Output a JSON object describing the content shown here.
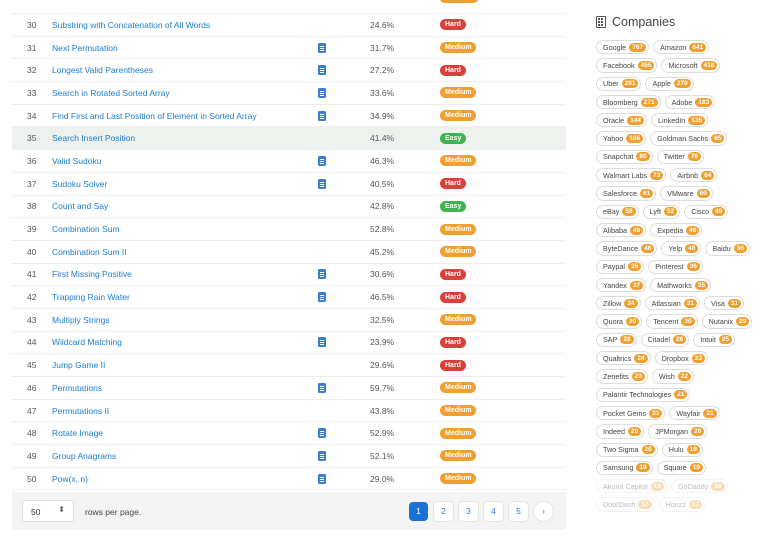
{
  "table": {
    "rows": [
      {
        "id": "30",
        "title": "Substring with Concatenation of All Words",
        "solution": false,
        "acceptance": "24.6%",
        "difficulty": "Hard"
      },
      {
        "id": "31",
        "title": "Next Permutation",
        "solution": true,
        "acceptance": "31.7%",
        "difficulty": "Medium"
      },
      {
        "id": "32",
        "title": "Longest Valid Parentheses",
        "solution": true,
        "acceptance": "27.2%",
        "difficulty": "Hard"
      },
      {
        "id": "33",
        "title": "Search in Rotated Sorted Array",
        "solution": true,
        "acceptance": "33.6%",
        "difficulty": "Medium"
      },
      {
        "id": "34",
        "title": "Find First and Last Position of Element in Sorted Array",
        "solution": true,
        "acceptance": "34.9%",
        "difficulty": "Medium"
      },
      {
        "id": "35",
        "title": "Search Insert Position",
        "solution": false,
        "acceptance": "41.4%",
        "difficulty": "Easy"
      },
      {
        "id": "36",
        "title": "Valid Sudoku",
        "solution": true,
        "acceptance": "46.3%",
        "difficulty": "Medium"
      },
      {
        "id": "37",
        "title": "Sudoku Solver",
        "solution": true,
        "acceptance": "40.5%",
        "difficulty": "Hard"
      },
      {
        "id": "38",
        "title": "Count and Say",
        "solution": false,
        "acceptance": "42.8%",
        "difficulty": "Easy"
      },
      {
        "id": "39",
        "title": "Combination Sum",
        "solution": false,
        "acceptance": "52.8%",
        "difficulty": "Medium"
      },
      {
        "id": "40",
        "title": "Combination Sum II",
        "solution": false,
        "acceptance": "45.2%",
        "difficulty": "Medium"
      },
      {
        "id": "41",
        "title": "First Missing Positive",
        "solution": true,
        "acceptance": "30.6%",
        "difficulty": "Hard"
      },
      {
        "id": "42",
        "title": "Trapping Rain Water",
        "solution": true,
        "acceptance": "46.5%",
        "difficulty": "Hard"
      },
      {
        "id": "43",
        "title": "Multiply Strings",
        "solution": false,
        "acceptance": "32.5%",
        "difficulty": "Medium"
      },
      {
        "id": "44",
        "title": "Wildcard Matching",
        "solution": true,
        "acceptance": "23.9%",
        "difficulty": "Hard"
      },
      {
        "id": "45",
        "title": "Jump Game II",
        "solution": false,
        "acceptance": "29.6%",
        "difficulty": "Hard"
      },
      {
        "id": "46",
        "title": "Permutations",
        "solution": true,
        "acceptance": "59.7%",
        "difficulty": "Medium"
      },
      {
        "id": "47",
        "title": "Permutations II",
        "solution": false,
        "acceptance": "43.8%",
        "difficulty": "Medium"
      },
      {
        "id": "48",
        "title": "Rotate Image",
        "solution": true,
        "acceptance": "52.9%",
        "difficulty": "Medium"
      },
      {
        "id": "49",
        "title": "Group Anagrams",
        "solution": true,
        "acceptance": "52.1%",
        "difficulty": "Medium"
      },
      {
        "id": "50",
        "title": "Pow(x, n)",
        "solution": true,
        "acceptance": "29.0%",
        "difficulty": "Medium"
      }
    ],
    "highlighted_id": "35"
  },
  "footer": {
    "per_page_value": "50",
    "per_page_arrow": "⬍",
    "per_page_label": "rows per page.",
    "pages": [
      "1",
      "2",
      "3",
      "4",
      "5"
    ],
    "active_page": "1",
    "next_label": "›"
  },
  "companies": {
    "title": "Companies",
    "icon": "building-icon",
    "tags": [
      {
        "name": "Google",
        "count": "767"
      },
      {
        "name": "Amazon",
        "count": "641"
      },
      {
        "name": "Facebook",
        "count": "455"
      },
      {
        "name": "Microsoft",
        "count": "418"
      },
      {
        "name": "Uber",
        "count": "281"
      },
      {
        "name": "Apple",
        "count": "270"
      },
      {
        "name": "Bloomberg",
        "count": "271"
      },
      {
        "name": "Adobe",
        "count": "183"
      },
      {
        "name": "Oracle",
        "count": "144"
      },
      {
        "name": "LinkedIn",
        "count": "135"
      },
      {
        "name": "Yahoo",
        "count": "106"
      },
      {
        "name": "Goldman Sachs",
        "count": "85"
      },
      {
        "name": "Snapchat",
        "count": "80"
      },
      {
        "name": "Twitter",
        "count": "76"
      },
      {
        "name": "Walmart Labs",
        "count": "73"
      },
      {
        "name": "Airbnb",
        "count": "64"
      },
      {
        "name": "Salesforce",
        "count": "61"
      },
      {
        "name": "VMware",
        "count": "60"
      },
      {
        "name": "eBay",
        "count": "58"
      },
      {
        "name": "Lyft",
        "count": "52"
      },
      {
        "name": "Cisco",
        "count": "49"
      },
      {
        "name": "Alibaba",
        "count": "46"
      },
      {
        "name": "Expedia",
        "count": "46"
      },
      {
        "name": "ByteDance",
        "count": "46"
      },
      {
        "name": "Yelp",
        "count": "40"
      },
      {
        "name": "Baidu",
        "count": "36"
      },
      {
        "name": "Paypal",
        "count": "35"
      },
      {
        "name": "Pinterest",
        "count": "36"
      },
      {
        "name": "Yandex",
        "count": "37"
      },
      {
        "name": "Mathworks",
        "count": "35"
      },
      {
        "name": "Zillow",
        "count": "34"
      },
      {
        "name": "Atlassian",
        "count": "31"
      },
      {
        "name": "Visa",
        "count": "31"
      },
      {
        "name": "Quora",
        "count": "30"
      },
      {
        "name": "Tencent",
        "count": "30"
      },
      {
        "name": "Nutanix",
        "count": "29"
      },
      {
        "name": "SAP",
        "count": "28"
      },
      {
        "name": "Citadel",
        "count": "26"
      },
      {
        "name": "Intuit",
        "count": "25"
      },
      {
        "name": "Qualtrics",
        "count": "24"
      },
      {
        "name": "Dropbox",
        "count": "23"
      },
      {
        "name": "Zenefits",
        "count": "23"
      },
      {
        "name": "Wish",
        "count": "22"
      },
      {
        "name": "Palantir Technologies",
        "count": "21"
      },
      {
        "name": "Pocket Gems",
        "count": "21"
      },
      {
        "name": "Wayfair",
        "count": "21"
      },
      {
        "name": "Indeed",
        "count": "20"
      },
      {
        "name": "JPMorgan",
        "count": "20"
      },
      {
        "name": "Two Sigma",
        "count": "20"
      },
      {
        "name": "Hulu",
        "count": "19"
      },
      {
        "name": "Samsung",
        "count": "19"
      },
      {
        "name": "Square",
        "count": "19"
      },
      {
        "name": "Akuna Capital",
        "count": "18"
      },
      {
        "name": "GoDaddy",
        "count": "18"
      },
      {
        "name": "DoorDash",
        "count": "17"
      },
      {
        "name": "Houzz",
        "count": "17"
      }
    ],
    "faded_from_index": 52
  },
  "colors": {
    "link": "#1a7dd0",
    "easy": "#3fb34f",
    "medium": "#f0a030",
    "hard": "#d9403a",
    "active_page": "#1a72d6"
  }
}
